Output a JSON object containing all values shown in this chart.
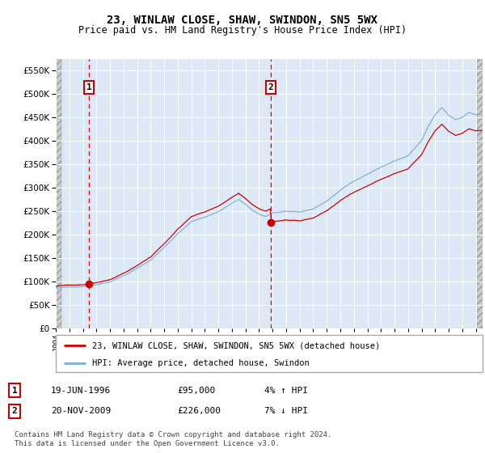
{
  "title": "23, WINLAW CLOSE, SHAW, SWINDON, SN5 5WX",
  "subtitle": "Price paid vs. HM Land Registry's House Price Index (HPI)",
  "legend_line1": "23, WINLAW CLOSE, SHAW, SWINDON, SN5 5WX (detached house)",
  "legend_line2": "HPI: Average price, detached house, Swindon",
  "transaction1_label": "1",
  "transaction1_date": "19-JUN-1996",
  "transaction1_price": "£95,000",
  "transaction1_hpi": "4% ↑ HPI",
  "transaction1_year": 1996.46,
  "transaction1_value": 95000,
  "transaction2_label": "2",
  "transaction2_date": "20-NOV-2009",
  "transaction2_price": "£226,000",
  "transaction2_hpi": "7% ↓ HPI",
  "transaction2_year": 2009.88,
  "transaction2_value": 226000,
  "footer": "Contains HM Land Registry data © Crown copyright and database right 2024.\nThis data is licensed under the Open Government Licence v3.0.",
  "hpi_color": "#7bafd4",
  "price_color": "#cc0000",
  "vline_color": "#cc0000",
  "background_chart": "#dce8f5",
  "ylim": [
    0,
    575000
  ],
  "yticks": [
    0,
    50000,
    100000,
    150000,
    200000,
    250000,
    300000,
    350000,
    400000,
    450000,
    500000,
    550000
  ],
  "xmin": 1994.0,
  "xmax": 2025.5
}
